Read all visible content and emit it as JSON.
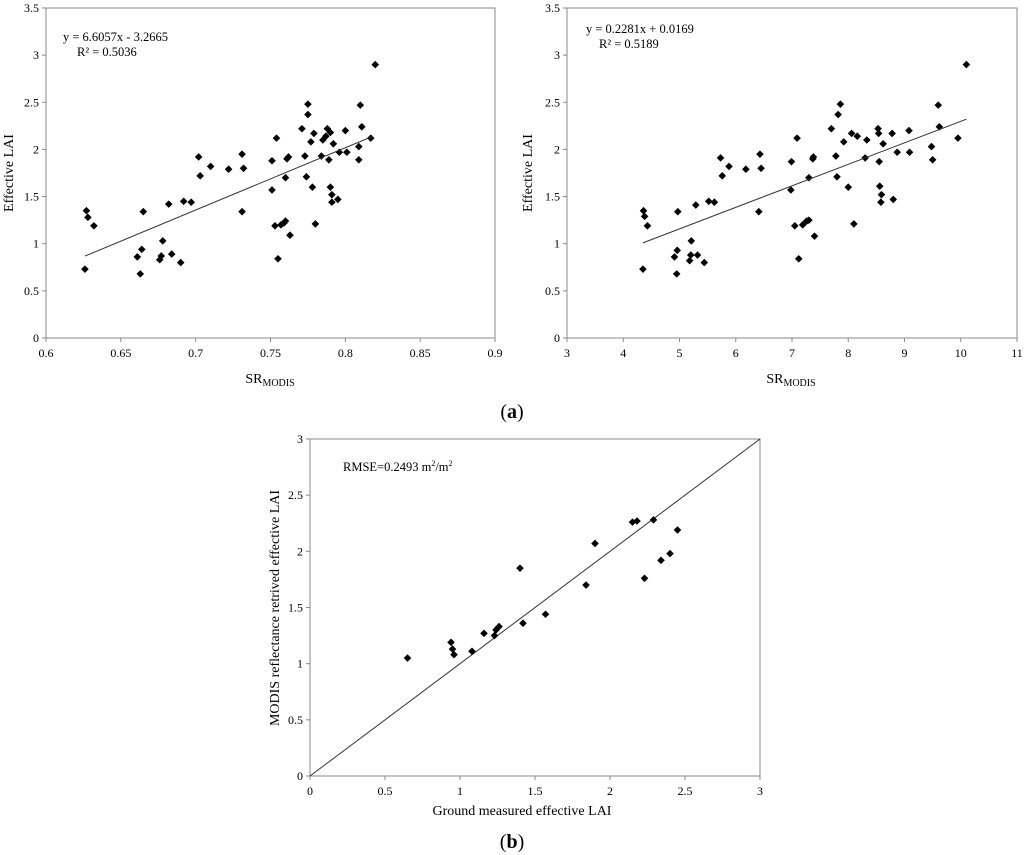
{
  "figure_labels": {
    "a": "a",
    "b": "b"
  },
  "chart_data": [
    {
      "type": "scatter",
      "panel": "a-left",
      "xlabel_main": "SR",
      "xlabel_sub": "MODIS",
      "ylabel": "Effective LAI",
      "xlim": [
        0.6,
        0.9
      ],
      "ylim": [
        0,
        3.5
      ],
      "xticks": [
        0.6,
        0.65,
        0.7,
        0.75,
        0.8,
        0.85,
        0.9
      ],
      "xtick_labels": [
        "0.6",
        "0.65",
        "0.7",
        "0.75",
        "0.8",
        "0.85",
        "0.9"
      ],
      "yticks": [
        0,
        0.5,
        1,
        1.5,
        2,
        2.5,
        3,
        3.5
      ],
      "ytick_labels": [
        "0",
        "0.5",
        "1",
        "1.5",
        "2",
        "2.5",
        "3",
        "3.5"
      ],
      "equation": "y = 6.6057x - 3.2665",
      "r_squared": "R² = 0.5036",
      "trendline": {
        "slope": 6.6057,
        "intercept": -3.2665,
        "x_range": [
          0.626,
          0.818
        ]
      },
      "points": [
        [
          0.626,
          0.73
        ],
        [
          0.627,
          1.35
        ],
        [
          0.628,
          1.28
        ],
        [
          0.632,
          1.19
        ],
        [
          0.661,
          0.86
        ],
        [
          0.663,
          0.68
        ],
        [
          0.664,
          0.94
        ],
        [
          0.665,
          1.34
        ],
        [
          0.676,
          0.83
        ],
        [
          0.677,
          0.87
        ],
        [
          0.678,
          1.03
        ],
        [
          0.682,
          1.42
        ],
        [
          0.684,
          0.89
        ],
        [
          0.69,
          0.8
        ],
        [
          0.692,
          1.45
        ],
        [
          0.697,
          1.44
        ],
        [
          0.702,
          1.92
        ],
        [
          0.703,
          1.72
        ],
        [
          0.71,
          1.82
        ],
        [
          0.722,
          1.79
        ],
        [
          0.731,
          1.34
        ],
        [
          0.731,
          1.95
        ],
        [
          0.732,
          1.8
        ],
        [
          0.751,
          1.57
        ],
        [
          0.751,
          1.88
        ],
        [
          0.753,
          1.19
        ],
        [
          0.754,
          2.12
        ],
        [
          0.755,
          0.84
        ],
        [
          0.757,
          1.2
        ],
        [
          0.759,
          1.22
        ],
        [
          0.76,
          1.24
        ],
        [
          0.76,
          1.7
        ],
        [
          0.761,
          1.9
        ],
        [
          0.762,
          1.92
        ],
        [
          0.763,
          1.09
        ],
        [
          0.771,
          2.22
        ],
        [
          0.773,
          1.93
        ],
        [
          0.774,
          1.71
        ],
        [
          0.775,
          2.37
        ],
        [
          0.775,
          2.48
        ],
        [
          0.777,
          2.08
        ],
        [
          0.778,
          1.6
        ],
        [
          0.779,
          2.17
        ],
        [
          0.78,
          1.21
        ],
        [
          0.784,
          1.93
        ],
        [
          0.785,
          2.1
        ],
        [
          0.787,
          2.14
        ],
        [
          0.788,
          2.22
        ],
        [
          0.789,
          1.89
        ],
        [
          0.79,
          2.18
        ],
        [
          0.79,
          1.6
        ],
        [
          0.791,
          1.44
        ],
        [
          0.791,
          1.52
        ],
        [
          0.792,
          2.06
        ],
        [
          0.795,
          1.47
        ],
        [
          0.796,
          1.97
        ],
        [
          0.8,
          2.2
        ],
        [
          0.801,
          1.97
        ],
        [
          0.809,
          2.03
        ],
        [
          0.809,
          1.89
        ],
        [
          0.81,
          2.47
        ],
        [
          0.811,
          2.24
        ],
        [
          0.817,
          2.12
        ],
        [
          0.82,
          2.9
        ]
      ]
    },
    {
      "type": "scatter",
      "panel": "a-right",
      "xlabel_main": "SR",
      "xlabel_sub": "MODIS",
      "ylabel": "Effective LAI",
      "xlim": [
        3,
        11
      ],
      "ylim": [
        0,
        3.5
      ],
      "xticks": [
        3,
        4,
        5,
        6,
        7,
        8,
        9,
        10,
        11
      ],
      "xtick_labels": [
        "3",
        "4",
        "5",
        "6",
        "7",
        "8",
        "9",
        "10",
        "11"
      ],
      "yticks": [
        0,
        0.5,
        1,
        1.5,
        2,
        2.5,
        3,
        3.5
      ],
      "ytick_labels": [
        "0",
        "0.5",
        "1",
        "1.5",
        "2",
        "2.5",
        "3",
        "3.5"
      ],
      "equation": "y = 0.2281x + 0.0169",
      "r_squared": "R² = 0.5189",
      "trendline": {
        "slope": 0.2281,
        "intercept": 0.0169,
        "x_range": [
          4.35,
          10.1
        ]
      },
      "points": [
        [
          4.35,
          0.73
        ],
        [
          4.36,
          1.35
        ],
        [
          4.38,
          1.29
        ],
        [
          4.43,
          1.19
        ],
        [
          4.91,
          0.86
        ],
        [
          4.95,
          0.68
        ],
        [
          4.96,
          0.93
        ],
        [
          4.97,
          1.34
        ],
        [
          5.18,
          0.82
        ],
        [
          5.2,
          0.88
        ],
        [
          5.21,
          1.03
        ],
        [
          5.29,
          1.41
        ],
        [
          5.32,
          0.88
        ],
        [
          5.44,
          0.8
        ],
        [
          5.52,
          1.45
        ],
        [
          5.62,
          1.44
        ],
        [
          5.73,
          1.91
        ],
        [
          5.76,
          1.72
        ],
        [
          5.88,
          1.82
        ],
        [
          6.18,
          1.79
        ],
        [
          6.41,
          1.34
        ],
        [
          6.43,
          1.95
        ],
        [
          6.45,
          1.8
        ],
        [
          6.98,
          1.57
        ],
        [
          6.99,
          1.87
        ],
        [
          7.05,
          1.19
        ],
        [
          7.09,
          2.12
        ],
        [
          7.12,
          0.84
        ],
        [
          7.19,
          1.2
        ],
        [
          7.26,
          1.24
        ],
        [
          7.3,
          1.25
        ],
        [
          7.3,
          1.7
        ],
        [
          7.37,
          1.9
        ],
        [
          7.38,
          1.92
        ],
        [
          7.4,
          1.08
        ],
        [
          7.7,
          2.22
        ],
        [
          7.78,
          1.93
        ],
        [
          7.8,
          1.71
        ],
        [
          7.82,
          2.37
        ],
        [
          7.86,
          2.48
        ],
        [
          7.92,
          2.08
        ],
        [
          8.0,
          1.6
        ],
        [
          8.06,
          2.17
        ],
        [
          8.1,
          1.21
        ],
        [
          8.16,
          2.14
        ],
        [
          8.3,
          1.91
        ],
        [
          8.33,
          2.1
        ],
        [
          8.53,
          2.22
        ],
        [
          8.54,
          2.17
        ],
        [
          8.55,
          1.87
        ],
        [
          8.56,
          1.61
        ],
        [
          8.58,
          1.44
        ],
        [
          8.59,
          1.52
        ],
        [
          8.62,
          2.06
        ],
        [
          8.78,
          2.17
        ],
        [
          8.8,
          1.47
        ],
        [
          8.87,
          1.97
        ],
        [
          9.08,
          2.2
        ],
        [
          9.09,
          1.97
        ],
        [
          9.48,
          2.03
        ],
        [
          9.5,
          1.89
        ],
        [
          9.6,
          2.47
        ],
        [
          9.62,
          2.24
        ],
        [
          9.95,
          2.12
        ],
        [
          10.1,
          2.9
        ]
      ]
    },
    {
      "type": "scatter",
      "panel": "b",
      "xlabel": "Ground measured effective LAI",
      "ylabel": "MODIS reflectance retrived effective LAI",
      "xlim": [
        0,
        3
      ],
      "ylim": [
        0,
        3
      ],
      "xticks": [
        0,
        0.5,
        1,
        1.5,
        2,
        2.5,
        3
      ],
      "xtick_labels": [
        "0",
        "0.5",
        "1",
        "1.5",
        "2",
        "2.5",
        "3"
      ],
      "yticks": [
        0,
        0.5,
        1,
        1.5,
        2,
        2.5,
        3
      ],
      "ytick_labels": [
        "0",
        "0.5",
        "1",
        "1.5",
        "2",
        "2.5",
        "3"
      ],
      "annotation_main": "RMSE=0.2493  m",
      "annotation_sup1": "2",
      "annotation_mid": "/m",
      "annotation_sup2": "2",
      "reference_line": "1:1",
      "points": [
        [
          0.65,
          1.05
        ],
        [
          0.94,
          1.19
        ],
        [
          0.95,
          1.13
        ],
        [
          0.96,
          1.08
        ],
        [
          1.08,
          1.11
        ],
        [
          1.16,
          1.27
        ],
        [
          1.23,
          1.25
        ],
        [
          1.24,
          1.3
        ],
        [
          1.26,
          1.33
        ],
        [
          1.4,
          1.85
        ],
        [
          1.42,
          1.36
        ],
        [
          1.57,
          1.44
        ],
        [
          1.84,
          1.7
        ],
        [
          1.9,
          2.07
        ],
        [
          2.15,
          2.26
        ],
        [
          2.18,
          2.27
        ],
        [
          2.23,
          1.76
        ],
        [
          2.29,
          2.28
        ],
        [
          2.34,
          1.92
        ],
        [
          2.4,
          1.98
        ],
        [
          2.45,
          2.19
        ]
      ]
    }
  ]
}
